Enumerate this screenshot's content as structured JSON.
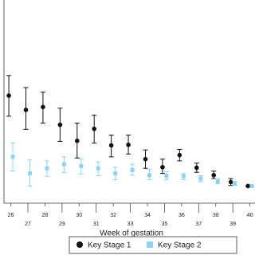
{
  "chart_data": {
    "type": "errorbar",
    "x_label": "Week of gestation",
    "x": [
      26,
      27,
      28,
      29,
      30,
      31,
      32,
      33,
      34,
      35,
      36,
      37,
      38,
      39,
      40
    ],
    "xlim": [
      25.6,
      40.3
    ],
    "ylim": [
      0.7,
      4.25
    ],
    "series": [
      {
        "name": "Key Stage 1",
        "color": "#111111",
        "marker": "circle",
        "values": [
          2.58,
          2.33,
          2.38,
          2.07,
          1.79,
          2.0,
          1.71,
          1.72,
          1.47,
          1.33,
          1.54,
          1.32,
          1.19,
          1.07,
          1
        ],
        "ci_low": [
          2.22,
          1.99,
          2.1,
          1.78,
          1.49,
          1.75,
          1.51,
          1.56,
          1.31,
          1.22,
          1.44,
          1.24,
          1.13,
          1.01,
          null
        ],
        "ci_high": [
          2.93,
          2.72,
          2.64,
          2.36,
          2.1,
          2.24,
          1.89,
          1.89,
          1.63,
          1.47,
          1.64,
          1.4,
          1.26,
          1.13,
          null
        ]
      },
      {
        "name": "Key Stage 2",
        "color": "#8fd3f0",
        "marker": "square",
        "values": [
          1.51,
          1.22,
          1.31,
          1.38,
          1.35,
          1.31,
          1.22,
          1.28,
          1.19,
          1.18,
          1.17,
          1.13,
          1.08,
          1.04,
          1
        ],
        "ci_low": [
          1.26,
          1.0,
          1.17,
          1.24,
          1.21,
          1.18,
          1.11,
          1.19,
          1.11,
          1.11,
          1.11,
          1.07,
          1.04,
          1.01,
          null
        ],
        "ci_high": [
          1.75,
          1.46,
          1.44,
          1.51,
          1.47,
          1.42,
          1.33,
          1.38,
          1.29,
          1.25,
          1.22,
          1.18,
          1.13,
          1.08,
          null
        ]
      }
    ]
  }
}
